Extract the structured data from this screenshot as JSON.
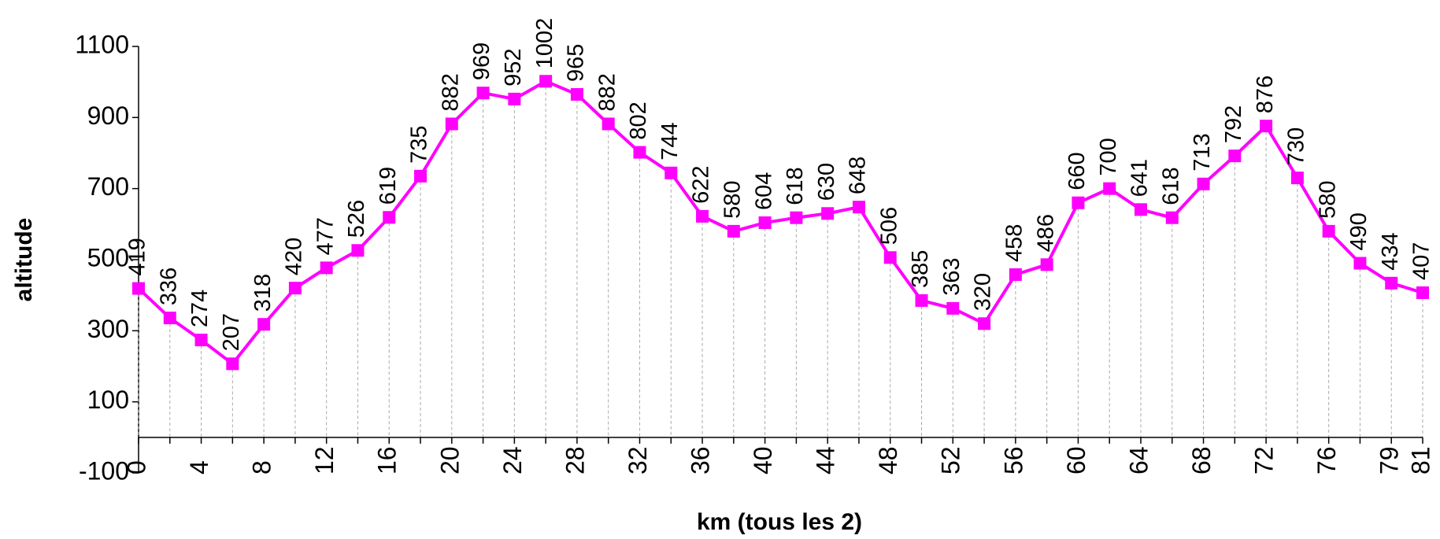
{
  "chart_data": {
    "type": "line",
    "x_label": "km  (tous les 2)",
    "y_label": "altitude",
    "categories": [
      "0",
      null,
      "4",
      null,
      "8",
      null,
      "12",
      null,
      "16",
      null,
      "20",
      null,
      "24",
      null,
      "28",
      null,
      "32",
      null,
      "36",
      null,
      "40",
      null,
      "44",
      null,
      "48",
      null,
      "52",
      null,
      "56",
      null,
      "60",
      null,
      "64",
      null,
      "68",
      null,
      "72",
      null,
      "76",
      null,
      "79",
      "81"
    ],
    "values": [
      419,
      336,
      274,
      207,
      318,
      420,
      477,
      526,
      619,
      735,
      882,
      969,
      952,
      1002,
      965,
      882,
      802,
      744,
      622,
      580,
      604,
      618,
      630,
      648,
      506,
      385,
      363,
      320,
      458,
      486,
      660,
      700,
      641,
      618,
      713,
      792,
      876,
      730,
      580,
      490,
      434,
      407
    ],
    "color": "#ff00ff",
    "marker": "square",
    "data_labels": true,
    "drop_lines": true,
    "ylim": [
      -100,
      1100
    ],
    "yticks": [
      -100,
      100,
      300,
      500,
      700,
      900,
      1100
    ]
  }
}
